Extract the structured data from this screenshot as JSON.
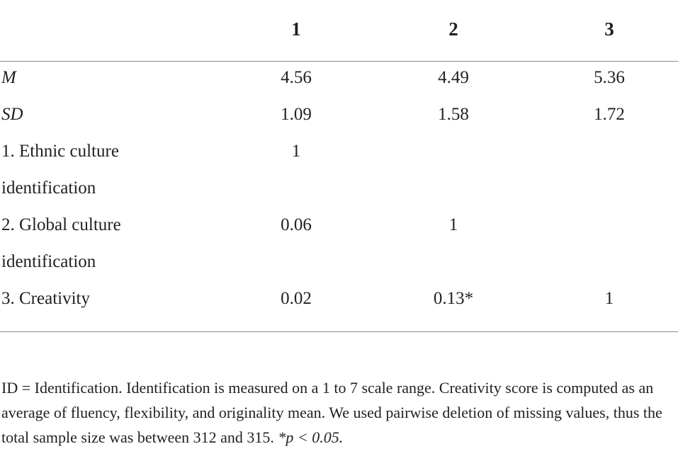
{
  "table": {
    "header": [
      "1",
      "2",
      "3"
    ],
    "rows": [
      {
        "label": "M",
        "cells": [
          "4.56",
          "4.49",
          "5.36"
        ]
      },
      {
        "label": "SD",
        "cells": [
          "1.09",
          "1.58",
          "1.72"
        ]
      },
      {
        "label": "1. Ethnic culture identification",
        "cells": [
          "1",
          null,
          null
        ]
      },
      {
        "label": "2. Global culture identification",
        "cells": [
          "0.06",
          "1",
          null
        ]
      },
      {
        "label": "3. Creativity",
        "cells": [
          "0.02",
          "0.13*",
          "1"
        ]
      }
    ]
  },
  "footnote": {
    "text": "ID = Identification. Identification is measured on a 1 to 7 scale range. Creativity score is computed as an average of fluency, flexibility, and originality mean. We used pairwise deletion of missing values, thus the total sample size was between 312 and 315.",
    "significance": "*p < 0.05."
  }
}
